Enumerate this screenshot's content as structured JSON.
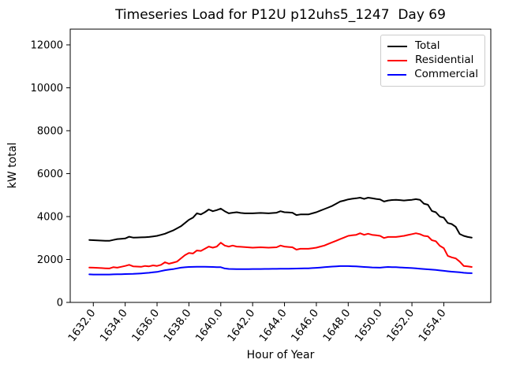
{
  "chart_data": {
    "type": "line",
    "title": "Timeseries Load for P12U p12uhs5_1247  Day 69",
    "xlabel": "Hour of Year",
    "ylabel": "kW total",
    "xlim": [
      1630.55,
      1656.95
    ],
    "ylim": [
      0,
      12733
    ],
    "grid": false,
    "legend_position": "upper right",
    "x_ticks": [
      1632,
      1634,
      1636,
      1638,
      1640,
      1642,
      1644,
      1646,
      1648,
      1650,
      1652,
      1654
    ],
    "x_tick_labels": [
      "1632.0",
      "1634.0",
      "1636.0",
      "1638.0",
      "1640.0",
      "1642.0",
      "1644.0",
      "1646.0",
      "1648.0",
      "1650.0",
      "1652.0",
      "1654.0"
    ],
    "y_ticks": [
      0,
      2000,
      4000,
      6000,
      8000,
      10000,
      12000
    ],
    "y_tick_labels": [
      "0",
      "2000",
      "4000",
      "6000",
      "8000",
      "10000",
      "12000"
    ],
    "x": [
      1631.75,
      1632.0,
      1632.25,
      1632.5,
      1632.75,
      1633.0,
      1633.25,
      1633.5,
      1633.75,
      1634.0,
      1634.25,
      1634.5,
      1634.75,
      1635.0,
      1635.25,
      1635.5,
      1635.75,
      1636.0,
      1636.25,
      1636.5,
      1636.75,
      1637.0,
      1637.25,
      1637.5,
      1637.75,
      1638.0,
      1638.25,
      1638.5,
      1638.75,
      1639.0,
      1639.25,
      1639.5,
      1639.75,
      1640.0,
      1640.25,
      1640.5,
      1640.75,
      1641.0,
      1641.25,
      1641.5,
      1641.75,
      1642.0,
      1642.25,
      1642.5,
      1642.75,
      1643.0,
      1643.25,
      1643.5,
      1643.75,
      1644.0,
      1644.25,
      1644.5,
      1644.75,
      1645.0,
      1645.25,
      1645.5,
      1645.75,
      1646.0,
      1646.25,
      1646.5,
      1646.75,
      1647.0,
      1647.25,
      1647.5,
      1647.75,
      1648.0,
      1648.25,
      1648.5,
      1648.75,
      1649.0,
      1649.25,
      1649.5,
      1649.75,
      1650.0,
      1650.25,
      1650.5,
      1650.75,
      1651.0,
      1651.25,
      1651.5,
      1651.75,
      1652.0,
      1652.25,
      1652.5,
      1652.75,
      1653.0,
      1653.25,
      1653.5,
      1653.75,
      1654.0,
      1654.25,
      1654.5,
      1654.75,
      1655.0,
      1655.25,
      1655.5,
      1655.75
    ],
    "series": [
      {
        "name": "Total",
        "color": "#000000",
        "values": [
          2910,
          2900,
          2890,
          2880,
          2875,
          2870,
          2910,
          2950,
          2965,
          2980,
          3060,
          3020,
          3025,
          3030,
          3040,
          3050,
          3075,
          3100,
          3150,
          3200,
          3275,
          3350,
          3450,
          3550,
          3700,
          3850,
          3950,
          4150,
          4100,
          4200,
          4330,
          4250,
          4300,
          4370,
          4250,
          4150,
          4180,
          4200,
          4170,
          4150,
          4150,
          4150,
          4160,
          4170,
          4160,
          4150,
          4165,
          4180,
          4250,
          4200,
          4190,
          4180,
          4070,
          4100,
          4100,
          4100,
          4150,
          4200,
          4280,
          4350,
          4420,
          4500,
          4600,
          4700,
          4750,
          4800,
          4830,
          4850,
          4880,
          4820,
          4880,
          4850,
          4820,
          4800,
          4700,
          4750,
          4770,
          4780,
          4765,
          4750,
          4765,
          4780,
          4810,
          4780,
          4600,
          4550,
          4260,
          4200,
          4000,
          3950,
          3700,
          3650,
          3520,
          3190,
          3100,
          3050,
          3020
        ]
      },
      {
        "name": "Residential",
        "color": "#ff0000",
        "values": [
          1625,
          1620,
          1610,
          1600,
          1590,
          1580,
          1640,
          1620,
          1660,
          1700,
          1750,
          1680,
          1670,
          1660,
          1700,
          1680,
          1725,
          1700,
          1750,
          1870,
          1800,
          1850,
          1900,
          2050,
          2200,
          2300,
          2280,
          2420,
          2400,
          2500,
          2600,
          2550,
          2600,
          2780,
          2650,
          2600,
          2650,
          2600,
          2590,
          2580,
          2565,
          2550,
          2560,
          2570,
          2560,
          2550,
          2560,
          2570,
          2650,
          2600,
          2585,
          2570,
          2460,
          2500,
          2500,
          2500,
          2525,
          2550,
          2600,
          2650,
          2725,
          2800,
          2875,
          2950,
          3025,
          3100,
          3125,
          3150,
          3220,
          3150,
          3200,
          3150,
          3125,
          3100,
          3000,
          3050,
          3050,
          3050,
          3075,
          3100,
          3140,
          3180,
          3220,
          3180,
          3100,
          3080,
          2900,
          2850,
          2640,
          2530,
          2170,
          2100,
          2050,
          1900,
          1700,
          1680,
          1650
        ]
      },
      {
        "name": "Commercial",
        "color": "#0000ff",
        "values": [
          1305,
          1300,
          1300,
          1298,
          1298,
          1300,
          1305,
          1310,
          1315,
          1320,
          1325,
          1330,
          1340,
          1350,
          1365,
          1380,
          1400,
          1420,
          1460,
          1500,
          1525,
          1550,
          1585,
          1620,
          1635,
          1650,
          1655,
          1660,
          1660,
          1660,
          1655,
          1650,
          1645,
          1640,
          1580,
          1560,
          1555,
          1550,
          1550,
          1552,
          1553,
          1555,
          1556,
          1557,
          1558,
          1560,
          1562,
          1565,
          1567,
          1570,
          1572,
          1575,
          1577,
          1580,
          1585,
          1590,
          1600,
          1610,
          1625,
          1640,
          1655,
          1670,
          1680,
          1690,
          1690,
          1690,
          1685,
          1680,
          1665,
          1650,
          1640,
          1630,
          1625,
          1620,
          1635,
          1650,
          1645,
          1640,
          1630,
          1620,
          1610,
          1600,
          1585,
          1570,
          1555,
          1540,
          1525,
          1510,
          1490,
          1470,
          1450,
          1430,
          1415,
          1400,
          1380,
          1370,
          1360
        ]
      }
    ],
    "colors": {
      "axis": "#000000",
      "legend_border": "#cccccc",
      "background": "#ffffff"
    }
  }
}
